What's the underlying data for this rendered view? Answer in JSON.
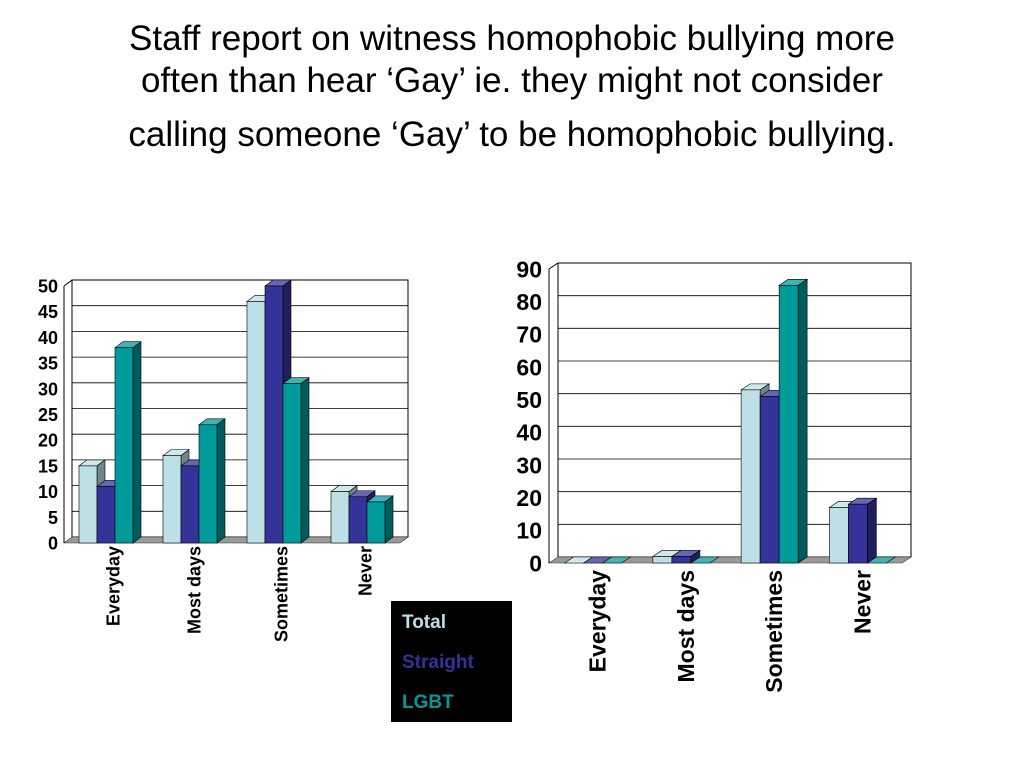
{
  "title": {
    "line1": "Staff report on witness homophobic bullying more",
    "line2": "often than hear ‘Gay’ ie. they might not consider",
    "line3": "calling someone ‘Gay’ to be homophobic bullying."
  },
  "legend": {
    "items": [
      {
        "label": "Total",
        "color": "#bde0e6"
      },
      {
        "label": "Straight",
        "color": "#33339a"
      },
      {
        "label": "LGBT",
        "color": "#009a9a"
      }
    ]
  },
  "chart_data": [
    {
      "type": "bar",
      "categories": [
        "Everyday",
        "Most days",
        "Sometimes",
        "Never"
      ],
      "series": [
        {
          "name": "Total",
          "values": [
            15,
            17,
            47,
            10
          ]
        },
        {
          "name": "Straight",
          "values": [
            11,
            15,
            50,
            9
          ]
        },
        {
          "name": "LGBT",
          "values": [
            38,
            23,
            31,
            8
          ]
        }
      ],
      "ylim": [
        0,
        50
      ],
      "yticks": [
        0,
        5,
        10,
        15,
        20,
        25,
        30,
        35,
        40,
        45,
        50
      ],
      "grid": true,
      "legend": "bottom-right"
    },
    {
      "type": "bar",
      "categories": [
        "Everyday",
        "Most days",
        "Sometimes",
        "Never"
      ],
      "series": [
        {
          "name": "Total",
          "values": [
            0,
            2,
            53,
            17
          ]
        },
        {
          "name": "Straight",
          "values": [
            0,
            2,
            51,
            18
          ]
        },
        {
          "name": "LGBT",
          "values": [
            0,
            0,
            85,
            0
          ]
        }
      ],
      "ylim": [
        0,
        90
      ],
      "yticks": [
        0,
        10,
        20,
        30,
        40,
        50,
        60,
        70,
        80,
        90
      ],
      "grid": true,
      "legend": "bottom-left"
    }
  ]
}
